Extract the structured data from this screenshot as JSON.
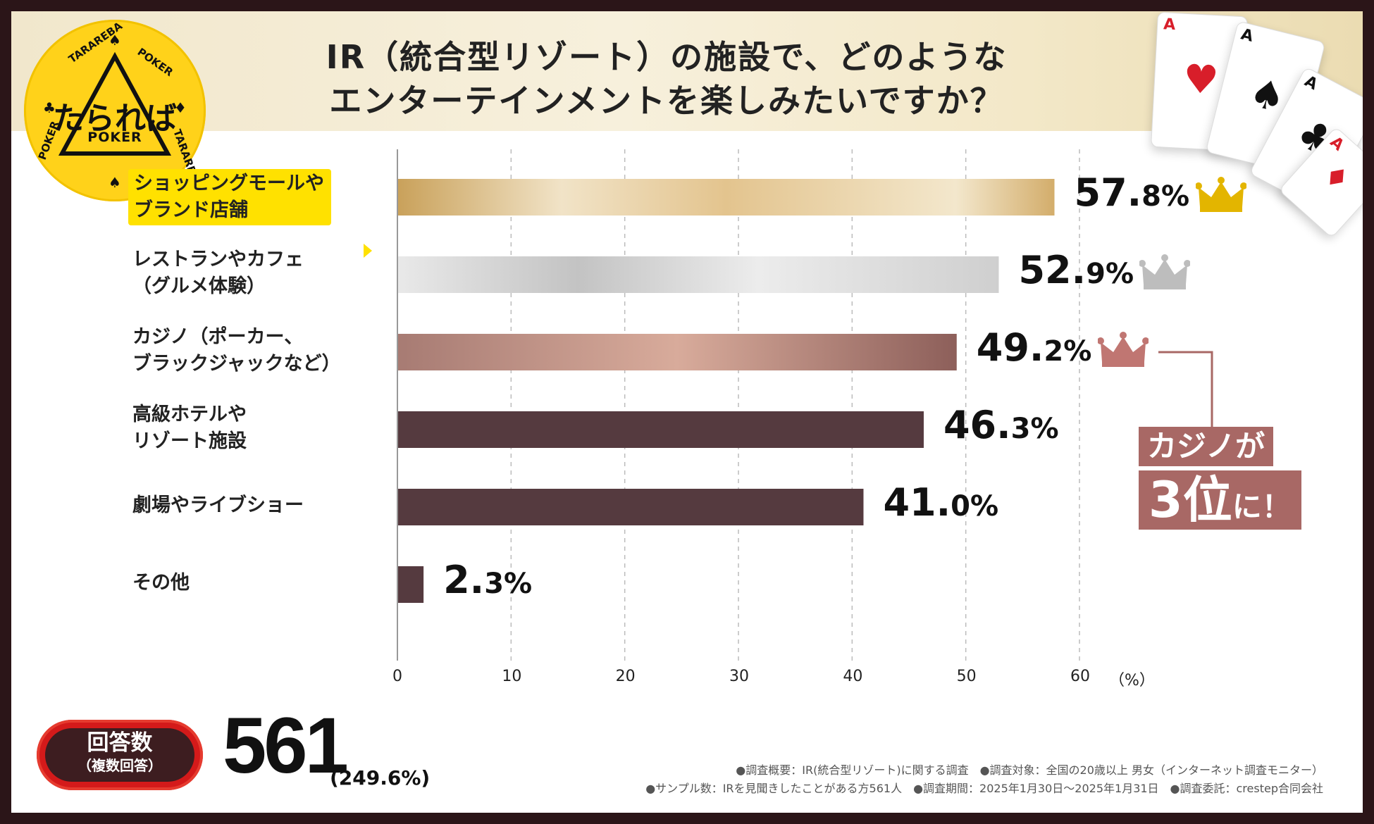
{
  "header": {
    "title_line1": "IR（統合型リゾート）の施設で、どのような",
    "title_line2": "エンターテインメントを楽しみたいですか？"
  },
  "logo": {
    "name": "たられば",
    "sub": "POKER",
    "ring_text": "TARAREBA POKER TARAREBA POKER",
    "color": "#ffd21a"
  },
  "cards": [
    "A",
    "A",
    "A",
    "A"
  ],
  "chart_data": {
    "type": "bar",
    "orientation": "horizontal",
    "title": "IR（統合型リゾート）の施設で、どのようなエンターテインメントを楽しみたいですか？",
    "categories": [
      "ショッピングモールや\nブランド店舗",
      "レストランやカフェ\n（グルメ体験）",
      "カジノ（ポーカー、\nブラックジャックなど）",
      "高級ホテルや\nリゾート施設",
      "劇場やライブショー",
      "その他"
    ],
    "values": [
      57.8,
      52.9,
      49.2,
      46.3,
      41.0,
      2.3
    ],
    "value_labels": [
      {
        "int": "57.",
        "dec": "8",
        "pct": "%"
      },
      {
        "int": "52.",
        "dec": "9",
        "pct": "%"
      },
      {
        "int": "49.",
        "dec": "2",
        "pct": "%"
      },
      {
        "int": "46.",
        "dec": "3",
        "pct": "%"
      },
      {
        "int": "41.",
        "dec": "0",
        "pct": "%"
      },
      {
        "int": "2.",
        "dec": "3",
        "pct": "%"
      }
    ],
    "bar_styles": [
      "gold",
      "silver",
      "bronze",
      "plain",
      "plain",
      "plain"
    ],
    "crowns": [
      "gold",
      "silver",
      "bronze"
    ],
    "crown_colors": {
      "gold": "#e3b500",
      "silver": "#bdbdbd",
      "bronze": "#c07672"
    },
    "xlim": [
      0,
      60
    ],
    "xticks": [
      "0",
      "10",
      "20",
      "30",
      "40",
      "50",
      "60"
    ],
    "xunit": "（%）",
    "grid": true,
    "highlight_index": 0,
    "highlight_color": "#ffe100",
    "plain_bar_color": "#553a3f"
  },
  "callout": {
    "line1": "カジノが",
    "big": "3位",
    "small": "に！",
    "color": "#a86865"
  },
  "footer": {
    "badge_title": "回答数",
    "badge_sub": "（複数回答）",
    "count": "561",
    "count_pct": "(249.6%)",
    "note1": "●調査概要：IR(統合型リゾート)に関する調査　●調査対象：全国の20歳以上 男女（インターネット調査モニター）",
    "note2": "●サンプル数：IRを見聞きしたことがある方561人　●調査期間：2025年1月30日～2025年1月31日　●調査委託：crestep合同会社"
  }
}
